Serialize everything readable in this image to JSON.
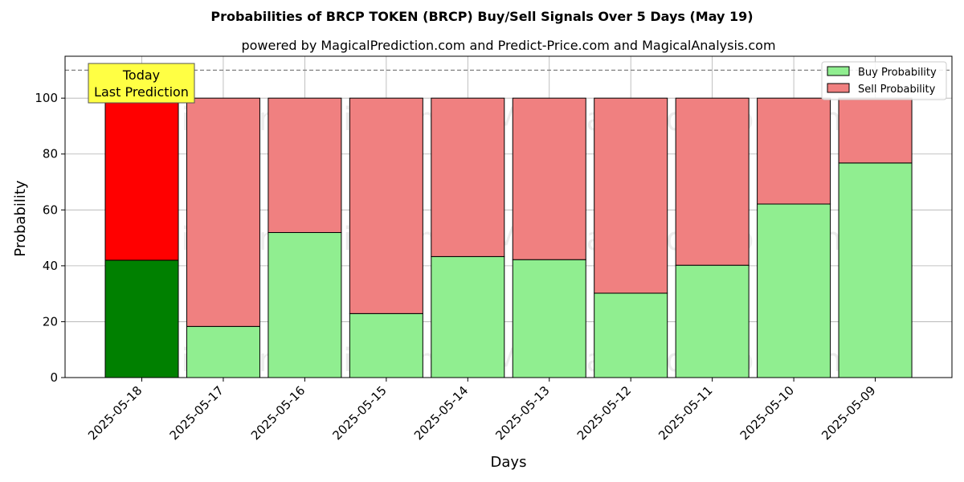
{
  "chart_data": {
    "type": "bar",
    "stacked": true,
    "title": "Probabilities of BRCP TOKEN (BRCP) Buy/Sell Signals Over 5 Days (May 19)",
    "subtitle": "powered by MagicalPrediction.com and Predict-Price.com and MagicalAnalysis.com",
    "xlabel": "Days",
    "ylabel": "Probability",
    "ylim": [
      0,
      115
    ],
    "yticks": [
      0,
      20,
      40,
      60,
      80,
      100
    ],
    "grid": true,
    "legend_position": "top-right",
    "categories": [
      "2025-05-18",
      "2025-05-17",
      "2025-05-16",
      "2025-05-15",
      "2025-05-14",
      "2025-05-13",
      "2025-05-12",
      "2025-05-11",
      "2025-05-10",
      "2025-05-09"
    ],
    "series": [
      {
        "name": "Buy Probability",
        "values": [
          42,
          18.3,
          51.9,
          22.9,
          43.3,
          42.2,
          30.2,
          40.2,
          62.1,
          76.8
        ]
      },
      {
        "name": "Sell Probability",
        "values": [
          58,
          81.7,
          48.1,
          77.1,
          56.7,
          57.8,
          69.8,
          59.8,
          37.9,
          23.2
        ]
      }
    ],
    "reference_line": 110,
    "annotation": {
      "line1": "Today",
      "line2": "Last Prediction"
    },
    "watermarks": [
      "MagicalAnalysis.com",
      "MagicalPrediction.com"
    ],
    "colors": {
      "buy": "#90ee90",
      "sell": "#f08080",
      "buy_today": "#008000",
      "sell_today": "#ff0000",
      "annotation_bg": "#ffff44"
    }
  }
}
